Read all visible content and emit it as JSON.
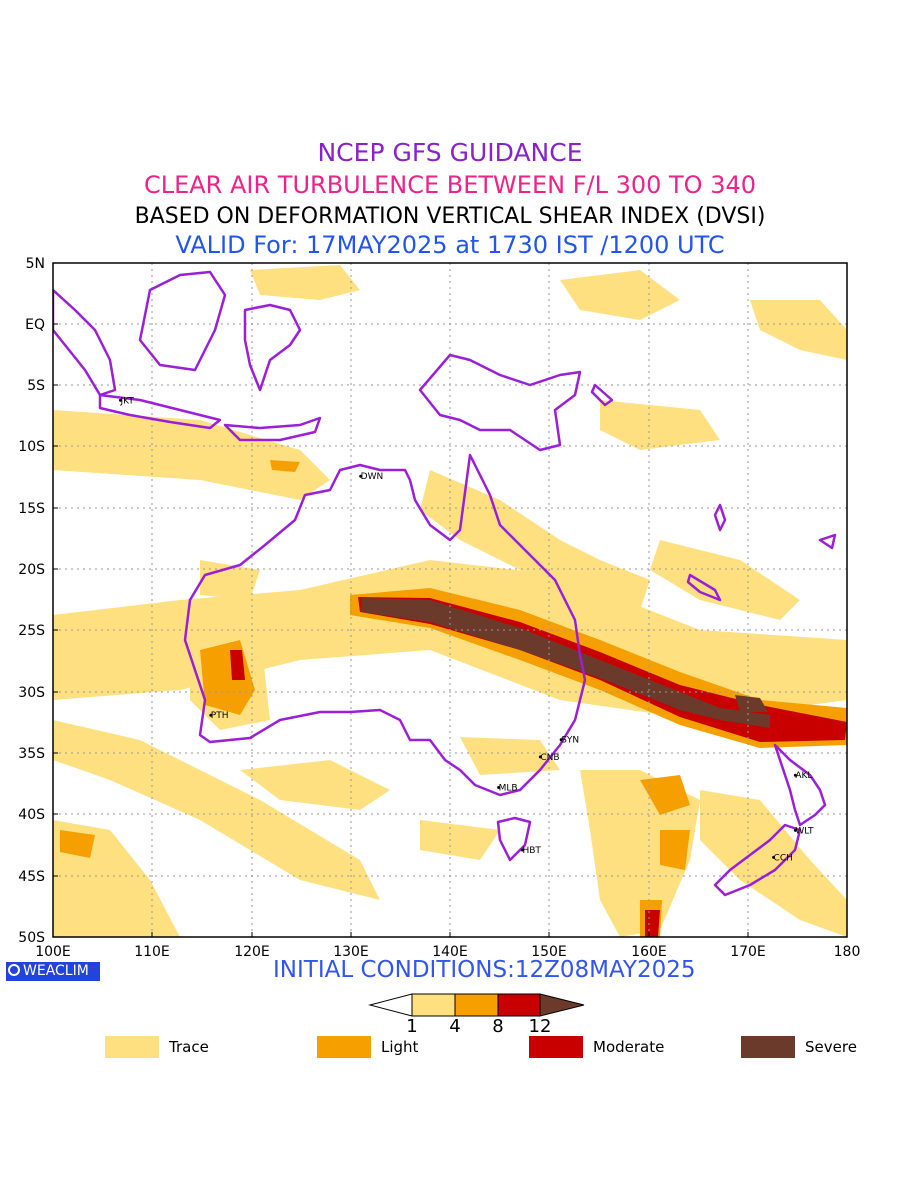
{
  "titles": {
    "line1": "NCEP GFS GUIDANCE",
    "line2": "CLEAR AIR TURBULENCE BETWEEN F/L 300 TO 340",
    "line3": "BASED ON DEFORMATION VERTICAL SHEAR INDEX (DVSI)",
    "line4": "VALID For: 17MAY2025 at 1730 IST /1200 UTC"
  },
  "colors": {
    "title1": "#8822cc",
    "title2": "#ee2288",
    "title3": "#000000",
    "title4": "#2255ee",
    "trace": "#ffe080",
    "light": "#f5a000",
    "moderate": "#c80000",
    "severe": "#6b3a2a",
    "coastline": "#9b1fd6",
    "grid": "#999999"
  },
  "axes": {
    "lat_labels": [
      "5N",
      "EQ",
      "5S",
      "10S",
      "15S",
      "20S",
      "25S",
      "30S",
      "35S",
      "40S",
      "45S",
      "50S"
    ],
    "lon_labels": [
      "100E",
      "110E",
      "120E",
      "130E",
      "140E",
      "150E",
      "160E",
      "170E",
      "180"
    ]
  },
  "stations": [
    {
      "code": "JKT",
      "lon": 106.8,
      "lat": -6.2
    },
    {
      "code": "DWN",
      "lon": 131.0,
      "lat": -12.4
    },
    {
      "code": "PTH",
      "lon": 115.9,
      "lat": -31.9
    },
    {
      "code": "SYN",
      "lon": 151.2,
      "lat": -33.9
    },
    {
      "code": "CNB",
      "lon": 149.1,
      "lat": -35.3
    },
    {
      "code": "MLB",
      "lon": 144.9,
      "lat": -37.8
    },
    {
      "code": "HBT",
      "lon": 147.3,
      "lat": -42.9
    },
    {
      "code": "AKL",
      "lon": 174.8,
      "lat": -36.8
    },
    {
      "code": "WLT",
      "lon": 174.8,
      "lat": -41.3
    },
    {
      "code": "CCH",
      "lon": 172.6,
      "lat": -43.5
    }
  ],
  "initial_conditions": "INITIAL CONDITIONS:12Z08MAY2025",
  "logo": "WEACLIM",
  "colorbar": {
    "thresholds": [
      "1",
      "4",
      "8",
      "12"
    ]
  },
  "legend": [
    {
      "label": "Trace",
      "color": "#ffe080"
    },
    {
      "label": "Light",
      "color": "#f5a000"
    },
    {
      "label": "Moderate",
      "color": "#c80000"
    },
    {
      "label": "Severe",
      "color": "#6b3a2a"
    }
  ]
}
